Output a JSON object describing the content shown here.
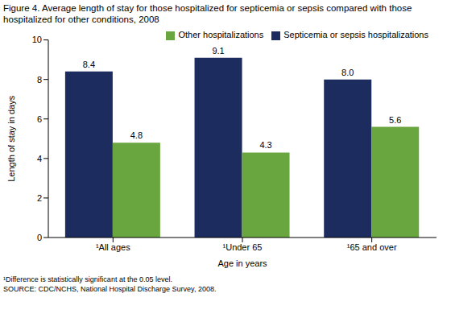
{
  "chart_data": {
    "type": "bar",
    "title": "Figure 4. Average length of stay for those hospitalized for septicemia or sepsis compared with those hospitalized for other conditions, 2008",
    "x_label": "Age in years",
    "y_label": "Length of stay in days",
    "categories": [
      "¹All ages",
      "¹Under 65",
      "¹65 and over"
    ],
    "series": [
      {
        "name": "Septicemia or sepsis hospitalizations",
        "color": "#1d2c5e",
        "values": [
          8.4,
          9.1,
          8.0
        ],
        "value_labels": [
          "8.4",
          "9.1",
          "8.0"
        ]
      },
      {
        "name": "Other hospitalizations",
        "color": "#6aa63f",
        "values": [
          4.8,
          4.3,
          5.6
        ],
        "value_labels": [
          "4.8",
          "4.3",
          "5.6"
        ]
      }
    ],
    "ylim": [
      0,
      10
    ],
    "yticks": [
      0,
      2,
      4,
      6,
      8,
      10
    ],
    "grid": false,
    "data_labels": true,
    "legend": "upper right",
    "footnote": "¹Difference is statistically significant at the 0.05 level.",
    "source": "SOURCE: CDC/NCHS, National Hospital Discharge Survey, 2008."
  }
}
